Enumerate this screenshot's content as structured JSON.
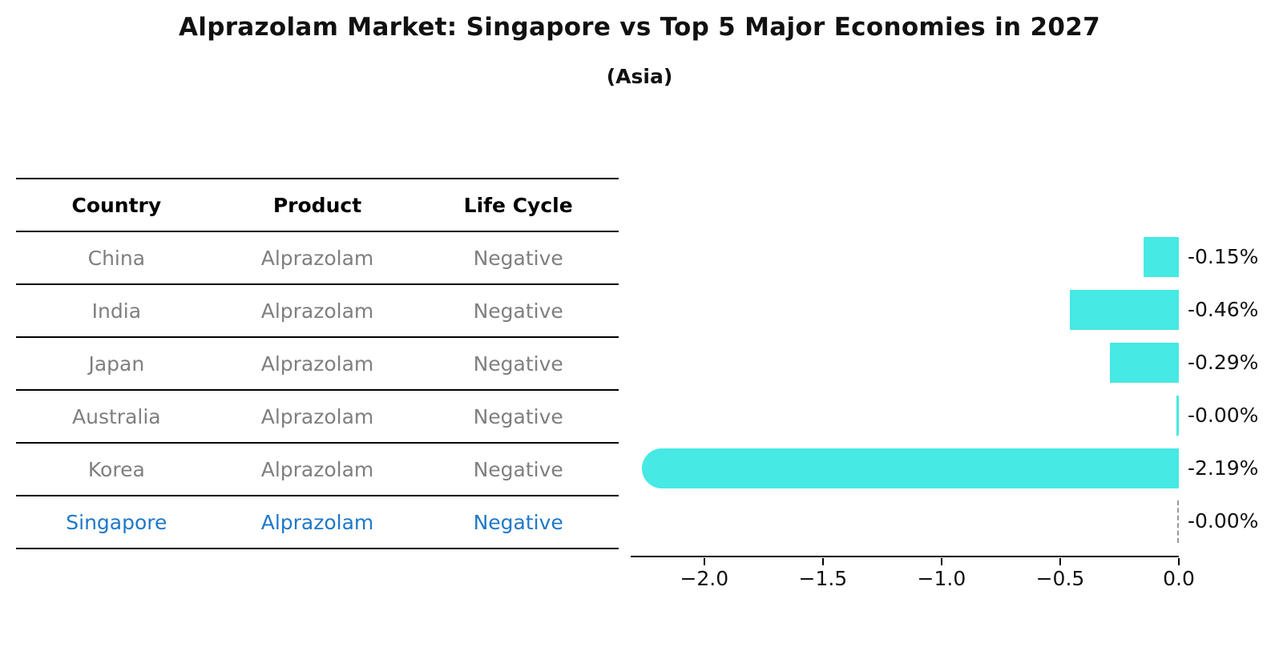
{
  "title": "Alprazolam Market: Singapore vs Top 5 Major Economies in 2027",
  "subtitle": "(Asia)",
  "table": {
    "headers": [
      "Country",
      "Product",
      "Life Cycle"
    ],
    "rows": [
      {
        "country": "China",
        "product": "Alprazolam",
        "life_cycle": "Negative",
        "highlighted": false
      },
      {
        "country": "India",
        "product": "Alprazolam",
        "life_cycle": "Negative",
        "highlighted": false
      },
      {
        "country": "Japan",
        "product": "Alprazolam",
        "life_cycle": "Negative",
        "highlighted": false
      },
      {
        "country": "Australia",
        "product": "Alprazolam",
        "life_cycle": "Negative",
        "highlighted": false
      },
      {
        "country": "Korea",
        "product": "Alprazolam",
        "life_cycle": "Negative",
        "highlighted": false
      },
      {
        "country": "Singapore",
        "product": "Alprazolam",
        "life_cycle": "Negative",
        "highlighted": true
      }
    ]
  },
  "chart_data": {
    "type": "bar",
    "orientation": "horizontal",
    "categories": [
      "China",
      "India",
      "Japan",
      "Australia",
      "Korea",
      "Singapore"
    ],
    "values": [
      -0.15,
      -0.46,
      -0.29,
      -0.0,
      -2.19,
      -0.0
    ],
    "value_labels": [
      "-0.15%",
      "-0.46%",
      "-0.29%",
      "-0.00%",
      "-2.19%",
      "-0.00%"
    ],
    "bar_styles": [
      "bar",
      "bar",
      "bar",
      "sliver",
      "rounded",
      "dashed-zero-line"
    ],
    "title": "Alprazolam Market: Singapore vs Top 5 Major Economies in 2027 (Asia)",
    "xlabel": "",
    "ylabel": "",
    "xlim": [
      -2.3,
      0.0
    ],
    "x_tick_values": [
      -2.0,
      -1.5,
      -1.0,
      -0.5,
      0.0
    ],
    "x_tick_labels": [
      "−2.0",
      "−1.5",
      "−1.0",
      "−0.5",
      "0.0"
    ],
    "grid": false,
    "legend": false,
    "bar_color": "#46E9E4"
  },
  "colors": {
    "background": "#ffffff",
    "bar": "#46E9E4",
    "table_text": "#7f7f7f",
    "header_text": "#000000",
    "highlight_text": "#1f78c8",
    "axis_line": "#000000",
    "zero_marker": "#999999"
  }
}
